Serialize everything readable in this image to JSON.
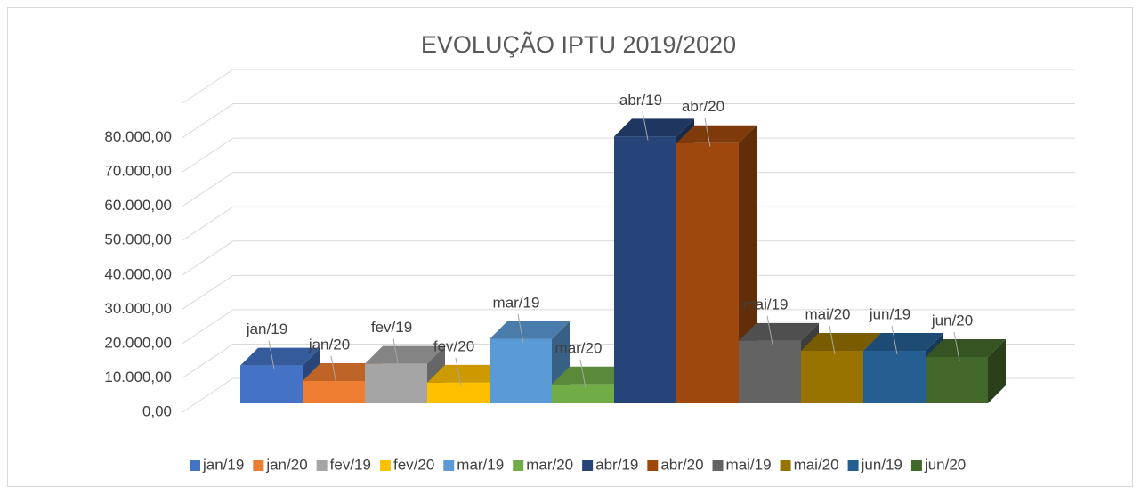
{
  "chart_data": {
    "type": "bar3d",
    "title": "EVOLUÇÃO IPTU 2019/2020",
    "categories": [
      null
    ],
    "series": [
      {
        "name": "jan/19",
        "color": "#4472c4",
        "values": [
          11000
        ]
      },
      {
        "name": "jan/20",
        "color": "#ed7d31",
        "values": [
          6500
        ]
      },
      {
        "name": "fev/19",
        "color": "#a5a5a5",
        "values": [
          11500
        ]
      },
      {
        "name": "fev/20",
        "color": "#ffc000",
        "values": [
          6000
        ]
      },
      {
        "name": "mar/19",
        "color": "#5b9bd5",
        "values": [
          18700
        ]
      },
      {
        "name": "mar/20",
        "color": "#70ad47",
        "values": [
          5500
        ]
      },
      {
        "name": "abr/19",
        "color": "#264478",
        "values": [
          77700
        ]
      },
      {
        "name": "abr/20",
        "color": "#9e480e",
        "values": [
          75800
        ]
      },
      {
        "name": "mai/19",
        "color": "#636363",
        "values": [
          18200
        ]
      },
      {
        "name": "mai/20",
        "color": "#997300",
        "values": [
          15300
        ]
      },
      {
        "name": "jun/19",
        "color": "#255e91",
        "values": [
          15300
        ]
      },
      {
        "name": "jun/20",
        "color": "#43682b",
        "values": [
          13500
        ]
      }
    ],
    "ylim": [
      0,
      90000
    ],
    "yticks": [
      {
        "value": 0,
        "label": "0,00"
      },
      {
        "value": 10000,
        "label": "10.000,00"
      },
      {
        "value": 20000,
        "label": "20.000,00"
      },
      {
        "value": 30000,
        "label": "30.000,00"
      },
      {
        "value": 40000,
        "label": "40.000,00"
      },
      {
        "value": 50000,
        "label": "50.000,00"
      },
      {
        "value": 60000,
        "label": "60.000,00"
      },
      {
        "value": 70000,
        "label": "70.000,00"
      },
      {
        "value": 80000,
        "label": "80.000,00"
      }
    ],
    "grid": true,
    "legend": "bottom"
  }
}
